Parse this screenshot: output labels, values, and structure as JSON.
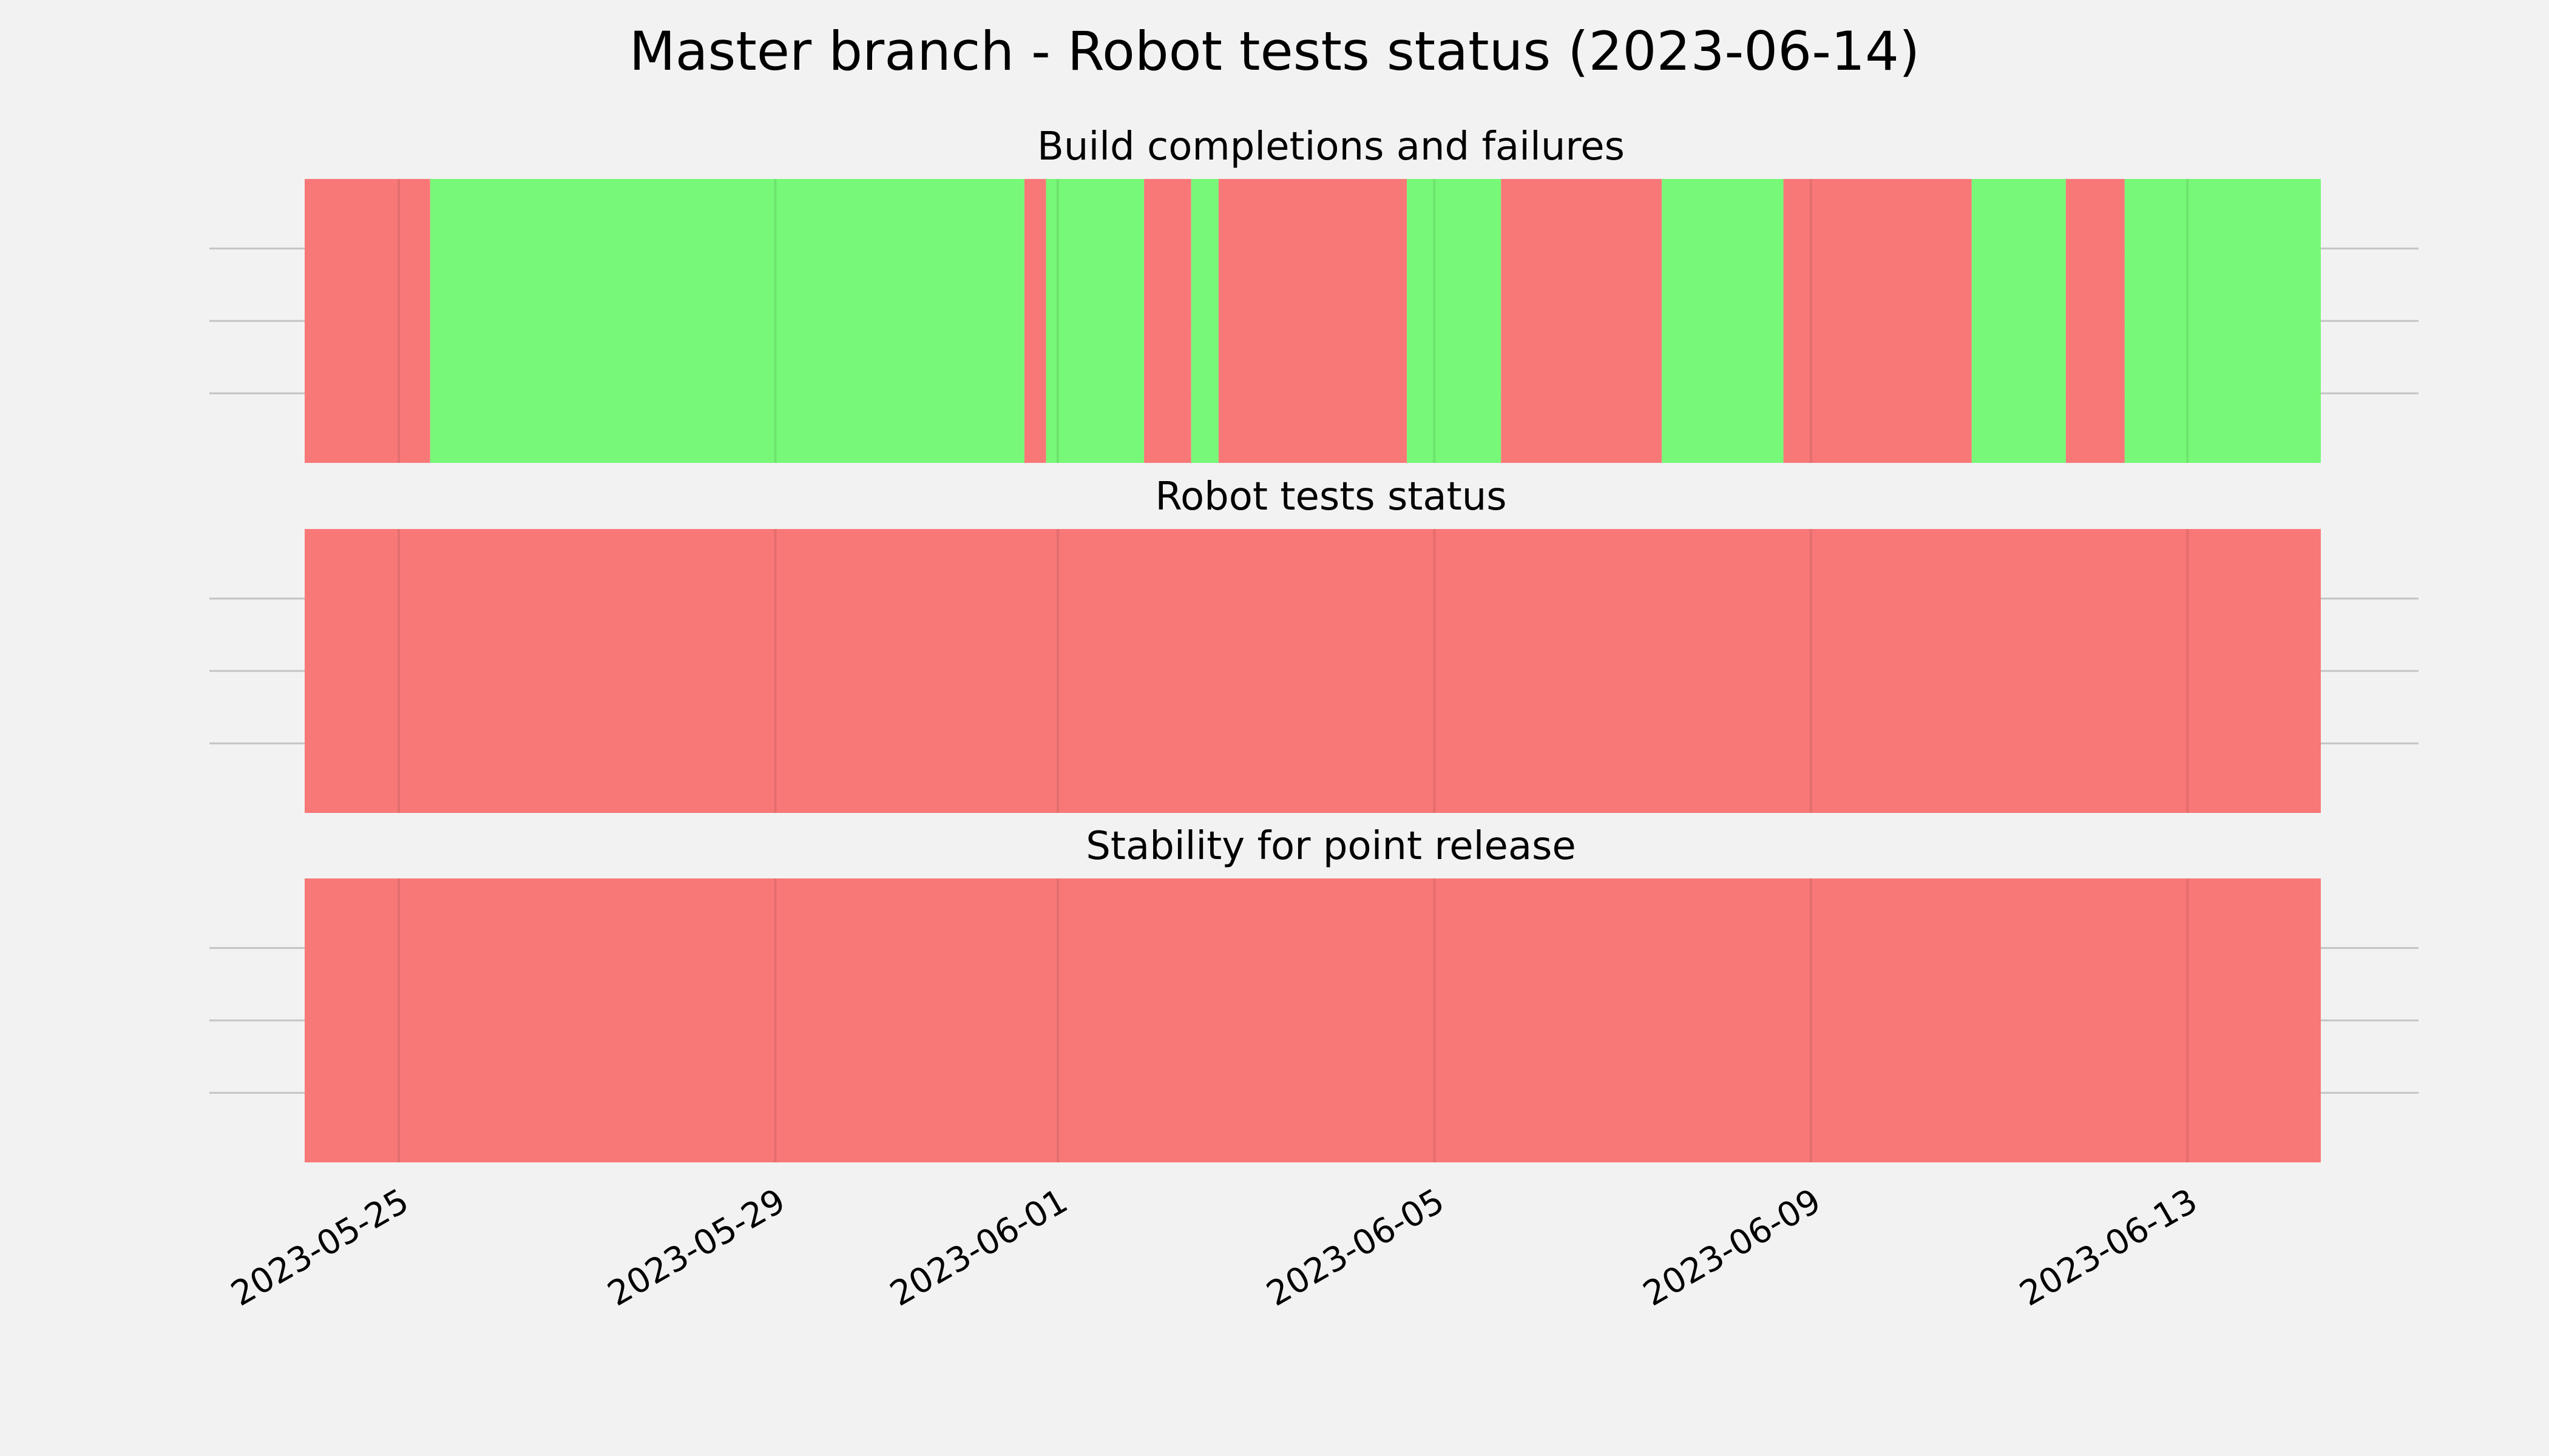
{
  "chart_data": {
    "type": "timeline",
    "title": "Master branch - Robot tests status (2023-06-14)",
    "x_range": [
      "2023-05-24T00:00",
      "2023-06-14T10:00"
    ],
    "x_ticks": [
      "2023-05-25",
      "2023-05-29",
      "2023-06-01",
      "2023-06-05",
      "2023-06-09",
      "2023-06-13"
    ],
    "status_colors": {
      "fail": "#f87878",
      "pass": "#78f878"
    },
    "grid": true,
    "panels": [
      {
        "title": "Build completions and failures",
        "segments": [
          {
            "start": "2023-05-24T00:00",
            "end": "2023-05-25T08:00",
            "status": "fail"
          },
          {
            "start": "2023-05-25T08:00",
            "end": "2023-05-31T15:30",
            "status": "pass"
          },
          {
            "start": "2023-05-31T15:30",
            "end": "2023-05-31T21:00",
            "status": "fail"
          },
          {
            "start": "2023-05-31T21:00",
            "end": "2023-06-01T22:00",
            "status": "pass"
          },
          {
            "start": "2023-06-01T22:00",
            "end": "2023-06-02T10:00",
            "status": "fail"
          },
          {
            "start": "2023-06-02T10:00",
            "end": "2023-06-02T17:00",
            "status": "pass"
          },
          {
            "start": "2023-06-02T17:00",
            "end": "2023-06-04T17:00",
            "status": "fail"
          },
          {
            "start": "2023-06-04T17:00",
            "end": "2023-06-05T17:00",
            "status": "pass"
          },
          {
            "start": "2023-06-05T17:00",
            "end": "2023-06-07T10:00",
            "status": "fail"
          },
          {
            "start": "2023-06-07T10:00",
            "end": "2023-06-08T17:00",
            "status": "pass"
          },
          {
            "start": "2023-06-08T17:00",
            "end": "2023-06-10T17:00",
            "status": "fail"
          },
          {
            "start": "2023-06-10T17:00",
            "end": "2023-06-11T17:00",
            "status": "pass"
          },
          {
            "start": "2023-06-11T17:00",
            "end": "2023-06-12T08:00",
            "status": "fail"
          },
          {
            "start": "2023-06-12T08:00",
            "end": "2023-06-14T10:00",
            "status": "pass"
          }
        ]
      },
      {
        "title": "Robot tests status",
        "segments": [
          {
            "start": "2023-05-24T00:00",
            "end": "2023-06-14T10:00",
            "status": "fail"
          }
        ]
      },
      {
        "title": "Stability for point release",
        "segments": [
          {
            "start": "2023-05-24T00:00",
            "end": "2023-06-14T10:00",
            "status": "fail"
          }
        ]
      }
    ]
  }
}
